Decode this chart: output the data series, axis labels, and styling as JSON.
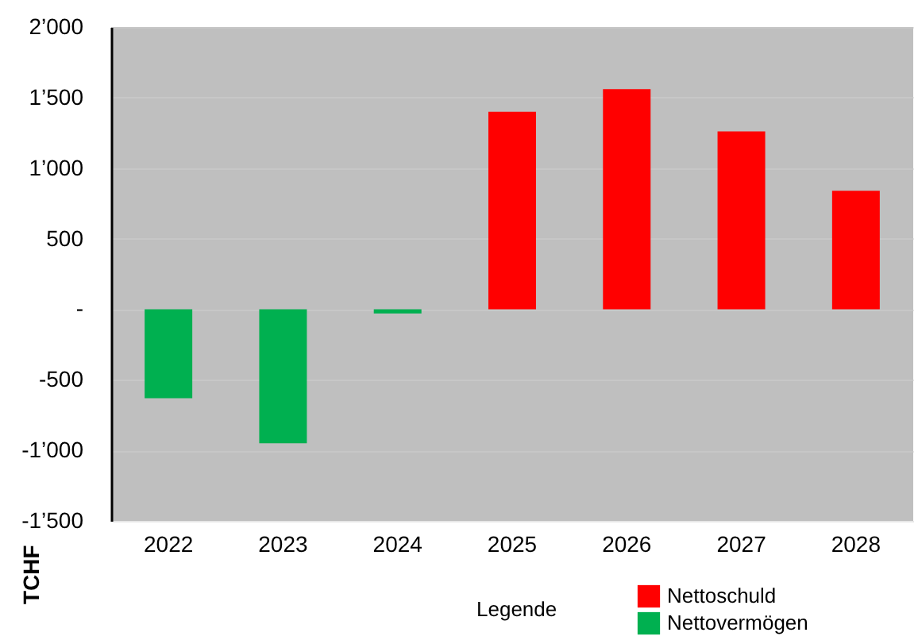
{
  "chart_data": {
    "type": "bar",
    "ylabel": "TCHF",
    "legend_title": "Legende",
    "categories": [
      "2022",
      "2023",
      "2024",
      "2025",
      "2026",
      "2027",
      "2028"
    ],
    "series": [
      {
        "name": "Nettoschuld",
        "color": "#ff0000",
        "values": [
          null,
          null,
          null,
          1400,
          1560,
          1260,
          840
        ]
      },
      {
        "name": "Nettovermögen",
        "color": "#00b050",
        "values": [
          -630,
          -950,
          -30,
          null,
          null,
          null,
          null
        ]
      }
    ],
    "ylim": [
      -1500,
      2000
    ],
    "yticks": [
      {
        "value": -1500,
        "label": "-1’500"
      },
      {
        "value": -1000,
        "label": "-1’000"
      },
      {
        "value": -500,
        "label": "-500"
      },
      {
        "value": 0,
        "label": "-"
      },
      {
        "value": 500,
        "label": "500"
      },
      {
        "value": 1000,
        "label": "1’000"
      },
      {
        "value": 1500,
        "label": "1’500"
      },
      {
        "value": 2000,
        "label": "2’000"
      }
    ],
    "grid": "y",
    "legend": "bottom right"
  }
}
